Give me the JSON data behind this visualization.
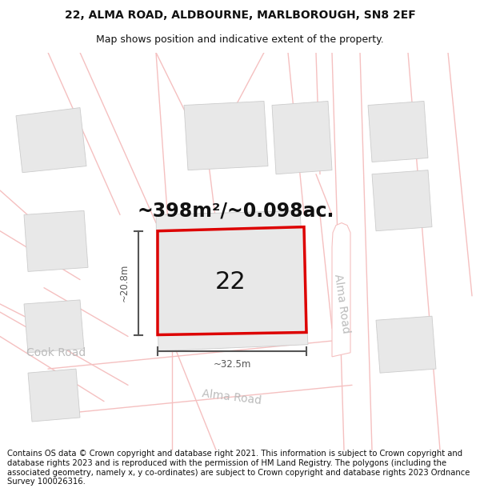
{
  "title_line1": "22, ALMA ROAD, ALDBOURNE, MARLBOROUGH, SN8 2EF",
  "title_line2": "Map shows position and indicative extent of the property.",
  "footer_text": "Contains OS data © Crown copyright and database right 2021. This information is subject to Crown copyright and database rights 2023 and is reproduced with the permission of HM Land Registry. The polygons (including the associated geometry, namely x, y co-ordinates) are subject to Crown copyright and database rights 2023 Ordnance Survey 100026316.",
  "area_label": "~398m²/~0.098ac.",
  "number_label": "22",
  "dim_width": "~32.5m",
  "dim_height": "~20.8m",
  "road_label_alma_diag": "Alma Road",
  "road_label_alma_horiz": "Alma Road",
  "road_label_cook": "Cook Road",
  "bg_color": "#ffffff",
  "map_bg": "#ffffff",
  "plot_fill": "#e8e8e8",
  "plot_outline": "#dd0000",
  "road_line_color": "#f5c0c0",
  "building_fill": "#e8e8e8",
  "building_outline": "#cccccc",
  "text_color": "#111111",
  "dim_color": "#555555",
  "road_text_color": "#bbbbbb",
  "title_fontsize": 10,
  "subtitle_fontsize": 9,
  "footer_fontsize": 7.2,
  "area_fontsize": 17,
  "number_fontsize": 22,
  "road_fontsize": 10
}
